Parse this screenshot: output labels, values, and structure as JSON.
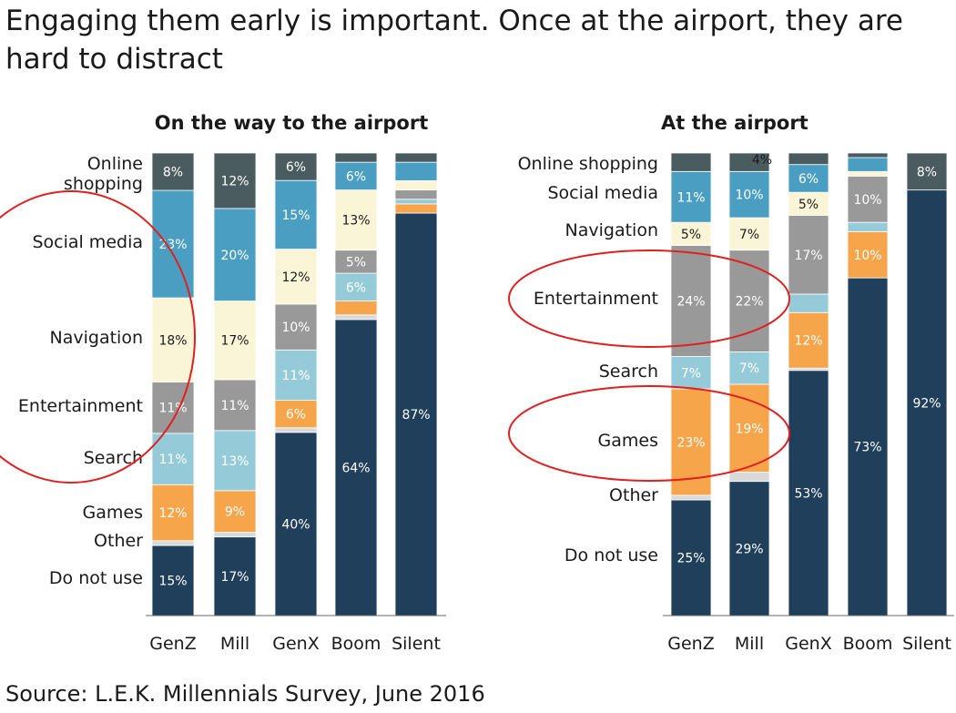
{
  "headline": "Engaging them early is important. Once at the airport, they are hard to distract",
  "source": "Source: L.E.K. Millennials Survey, June 2016",
  "colors": {
    "Do not use": "#1f3f5b",
    "Other": "#d9d9d9",
    "Games": "#f7a54a",
    "Search": "#95cbd8",
    "Entertainment": "#999999",
    "Navigation": "#fbf5d8",
    "Social media": "#4a9ec2",
    "Online shopping": "#4b5c60",
    "label_light": "#ffffff",
    "label_dark": "#1a1a1a",
    "highlight_circle": "#e02020"
  },
  "chart_data": [
    {
      "type": "bar",
      "stacked": true,
      "title": "On the way to the airport",
      "categories": [
        "GenZ",
        "Mill",
        "GenX",
        "Boom",
        "Silent"
      ],
      "ylim": [
        0,
        100
      ],
      "series": [
        {
          "name": "Do not use",
          "values": [
            15,
            17,
            40,
            64,
            87
          ]
        },
        {
          "name": "Other",
          "values": [
            1,
            1,
            1,
            1,
            0
          ]
        },
        {
          "name": "Games",
          "values": [
            12,
            9,
            6,
            3,
            2
          ]
        },
        {
          "name": "Search",
          "values": [
            11,
            13,
            11,
            6,
            1
          ]
        },
        {
          "name": "Entertainment",
          "values": [
            11,
            11,
            10,
            5,
            2
          ]
        },
        {
          "name": "Navigation",
          "values": [
            18,
            17,
            12,
            13,
            2
          ]
        },
        {
          "name": "Social media",
          "values": [
            23,
            20,
            15,
            6,
            4
          ]
        },
        {
          "name": "Online shopping",
          "values": [
            8,
            12,
            6,
            2,
            2
          ]
        }
      ],
      "labels": [
        [
          "15%",
          "17%",
          "40%",
          "64%",
          "87%"
        ],
        [
          "",
          "",
          "",
          "",
          ""
        ],
        [
          "12%",
          "9%",
          "6%",
          "",
          ""
        ],
        [
          "11%",
          "13%",
          "11%",
          "6%",
          ""
        ],
        [
          "11%",
          "11%",
          "10%",
          "5%",
          ""
        ],
        [
          "18%",
          "17%",
          "12%",
          "13%",
          ""
        ],
        [
          "23%",
          "20%",
          "15%",
          "6%",
          ""
        ],
        [
          "8%",
          "12%",
          "6%",
          "",
          ""
        ]
      ],
      "legend_labels": [
        "Do not use",
        "Other",
        "Games",
        "Search",
        "Entertainment",
        "Navigation",
        "Social media",
        "Online shopping"
      ],
      "highlighted": [
        "Social media",
        "Navigation",
        "Entertainment",
        "Search"
      ]
    },
    {
      "type": "bar",
      "stacked": true,
      "title": "At the airport",
      "categories": [
        "GenZ",
        "Mill",
        "GenX",
        "Boom",
        "Silent"
      ],
      "ylim": [
        0,
        100
      ],
      "series": [
        {
          "name": "Do not use",
          "values": [
            25,
            29,
            53,
            73,
            92
          ]
        },
        {
          "name": "Other",
          "values": [
            1,
            2,
            0.5,
            0,
            0
          ]
        },
        {
          "name": "Games",
          "values": [
            23,
            19,
            12,
            10,
            0
          ]
        },
        {
          "name": "Search",
          "values": [
            7,
            7,
            4,
            2,
            0
          ]
        },
        {
          "name": "Entertainment",
          "values": [
            24,
            22,
            17,
            10,
            0
          ]
        },
        {
          "name": "Navigation",
          "values": [
            5,
            7,
            5,
            1,
            0
          ]
        },
        {
          "name": "Social media",
          "values": [
            11,
            10,
            6,
            3,
            0
          ]
        },
        {
          "name": "Online shopping",
          "values": [
            4,
            4,
            2.5,
            1,
            8
          ]
        }
      ],
      "labels": [
        [
          "25%",
          "29%",
          "53%",
          "73%",
          "92%"
        ],
        [
          "",
          "",
          "",
          "",
          ""
        ],
        [
          "23%",
          "19%",
          "12%",
          "10%",
          ""
        ],
        [
          "7%",
          "7%",
          "",
          "",
          ""
        ],
        [
          "24%",
          "22%",
          "17%",
          "10%",
          ""
        ],
        [
          "5%",
          "7%",
          "5%",
          "",
          ""
        ],
        [
          "11%",
          "10%",
          "6%",
          "",
          ""
        ],
        [
          "",
          "4%",
          "",
          "",
          "8%"
        ]
      ],
      "legend_labels": [
        "Do not use",
        "Other",
        "Games",
        "Search",
        "Entertainment",
        "Navigation",
        "Social media",
        "Online shopping"
      ],
      "highlighted": [
        "Entertainment",
        "Games"
      ]
    }
  ]
}
